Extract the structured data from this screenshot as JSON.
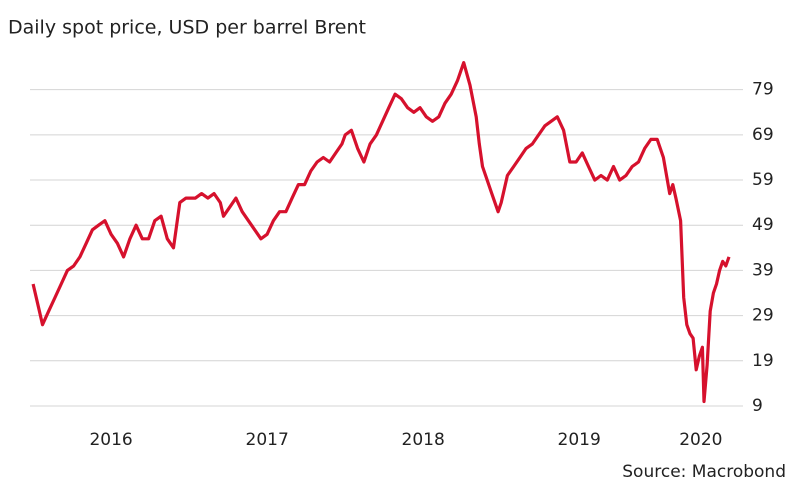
{
  "chart_data": {
    "type": "line",
    "title": "Daily spot price, USD per barrel Brent",
    "source": "Source: Macrobond",
    "x": [
      2016.0,
      2016.04,
      2016.06,
      2016.1,
      2016.14,
      2016.18,
      2016.22,
      2016.26,
      2016.3,
      2016.34,
      2016.38,
      2016.42,
      2016.46,
      2016.5,
      2016.54,
      2016.58,
      2016.62,
      2016.66,
      2016.7,
      2016.74,
      2016.78,
      2016.82,
      2016.86,
      2016.9,
      2016.94,
      2016.98,
      2017.0,
      2017.04,
      2017.08,
      2017.12,
      2017.16,
      2017.2,
      2017.22,
      2017.26,
      2017.3,
      2017.34,
      2017.38,
      2017.42,
      2017.46,
      2017.5,
      2017.54,
      2017.58,
      2017.62,
      2017.66,
      2017.7,
      2017.74,
      2017.78,
      2017.82,
      2017.86,
      2017.9,
      2017.94,
      2017.98,
      2018.0,
      2018.04,
      2018.08,
      2018.12,
      2018.16,
      2018.2,
      2018.24,
      2018.28,
      2018.32,
      2018.36,
      2018.4,
      2018.44,
      2018.48,
      2018.52,
      2018.56,
      2018.6,
      2018.64,
      2018.68,
      2018.72,
      2018.76,
      2018.8,
      2018.84,
      2018.86,
      2018.88,
      2018.9,
      2018.94,
      2018.98,
      2019.0,
      2019.04,
      2019.08,
      2019.12,
      2019.16,
      2019.2,
      2019.24,
      2019.28,
      2019.32,
      2019.36,
      2019.4,
      2019.44,
      2019.48,
      2019.52,
      2019.56,
      2019.6,
      2019.64,
      2019.68,
      2019.72,
      2019.76,
      2019.8,
      2019.84,
      2019.88,
      2019.92,
      2019.96,
      2020.0,
      2020.04,
      2020.08,
      2020.1,
      2020.12,
      2020.15,
      2020.17,
      2020.19,
      2020.21,
      2020.23,
      2020.25,
      2020.27,
      2020.29,
      2020.3,
      2020.32,
      2020.34,
      2020.36,
      2020.38,
      2020.4,
      2020.42,
      2020.44,
      2020.46
    ],
    "series": [
      {
        "name": "Brent",
        "color": "#d6112d",
        "values": [
          36,
          30,
          27,
          30,
          33,
          36,
          39,
          40,
          42,
          45,
          48,
          49,
          50,
          47,
          45,
          42,
          46,
          49,
          46,
          46,
          50,
          51,
          46,
          44,
          54,
          55,
          55,
          55,
          56,
          55,
          56,
          54,
          51,
          53,
          55,
          52,
          50,
          48,
          46,
          47,
          50,
          52,
          52,
          55,
          58,
          58,
          61,
          63,
          64,
          63,
          65,
          67,
          69,
          70,
          66,
          63,
          67,
          69,
          72,
          75,
          78,
          77,
          75,
          74,
          75,
          73,
          72,
          73,
          76,
          78,
          81,
          85,
          80,
          73,
          67,
          62,
          60,
          56,
          52,
          54,
          60,
          62,
          64,
          66,
          67,
          69,
          71,
          72,
          73,
          70,
          63,
          63,
          65,
          62,
          59,
          60,
          59,
          62,
          59,
          60,
          62,
          63,
          66,
          68,
          68,
          64,
          56,
          58,
          55,
          50,
          33,
          27,
          25,
          24,
          17,
          20,
          22,
          10,
          18,
          30,
          34,
          36,
          39,
          41,
          40,
          42
        ]
      }
    ],
    "xlim": [
      2015.98,
      2020.55
    ],
    "xticks": [
      {
        "value": 2016.5,
        "label": "2016"
      },
      {
        "value": 2017.5,
        "label": "2017"
      },
      {
        "value": 2018.5,
        "label": "2018"
      },
      {
        "value": 2019.5,
        "label": "2019"
      },
      {
        "value": 2020.28,
        "label": "2020"
      }
    ],
    "ylim": [
      9,
      88
    ],
    "yticks": [
      9,
      19,
      29,
      39,
      49,
      59,
      69,
      79
    ],
    "grid": true
  }
}
